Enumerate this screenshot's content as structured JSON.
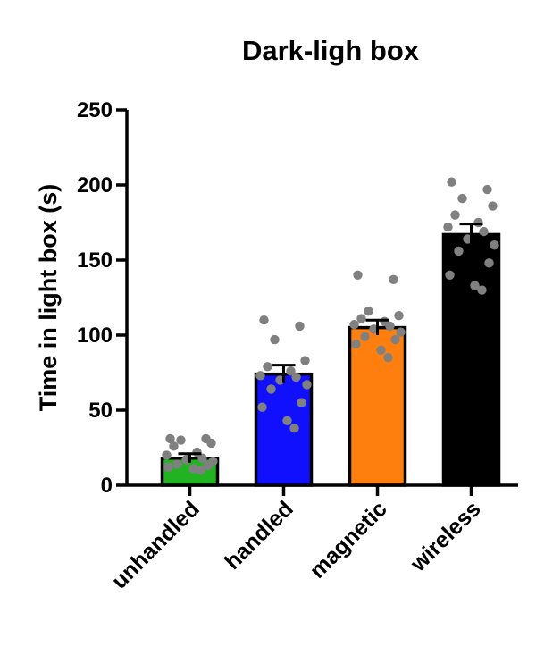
{
  "chart_data": {
    "type": "bar",
    "title": "Dark-ligh box",
    "xlabel": "",
    "ylabel": "Time in light box  (s)",
    "ylim": [
      0,
      250
    ],
    "yticks": [
      0,
      50,
      100,
      150,
      200,
      250
    ],
    "grid": false,
    "legend": "none",
    "categories": [
      "unhandled",
      "handled",
      "magnetic",
      "wireless"
    ],
    "values": [
      18,
      74,
      105,
      167
    ],
    "error": [
      3,
      6,
      5,
      7
    ],
    "colors": [
      "#22b322",
      "#1010ff",
      "#ff7f0e",
      "#000000"
    ],
    "point_color": "#808080",
    "points": [
      [
        31,
        31,
        30,
        28,
        26,
        22,
        20,
        18,
        17,
        16,
        14,
        13,
        12,
        11,
        10
      ],
      [
        110,
        106,
        97,
        83,
        79,
        76,
        73,
        72,
        70,
        67,
        64,
        55,
        52,
        43,
        38
      ],
      [
        140,
        137,
        116,
        113,
        111,
        109,
        107,
        106,
        104,
        102,
        99,
        97,
        94,
        90,
        85
      ],
      [
        202,
        197,
        191,
        186,
        180,
        175,
        172,
        169,
        164,
        160,
        156,
        148,
        140,
        133,
        130
      ]
    ]
  }
}
